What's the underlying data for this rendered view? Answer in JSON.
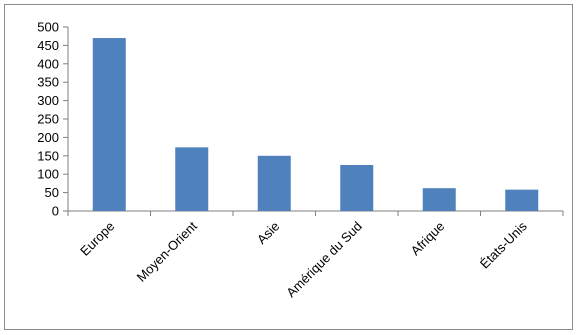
{
  "chart_data": {
    "type": "bar",
    "title": "",
    "xlabel": "",
    "ylabel": "",
    "categories": [
      "Europe",
      "Moyen-Orient",
      "Asie",
      "Amérique du Sud",
      "Afrique",
      "États-Unis"
    ],
    "values": [
      470,
      173,
      150,
      125,
      62,
      58
    ],
    "ylim": [
      0,
      500
    ],
    "yticks": [
      "0",
      "50",
      "100",
      "150",
      "200",
      "250",
      "300",
      "350",
      "400",
      "450",
      "500"
    ],
    "grid": false,
    "legend": "none",
    "colors": {
      "bar": "#4f81bd",
      "axis": "#7f7f7f"
    }
  }
}
